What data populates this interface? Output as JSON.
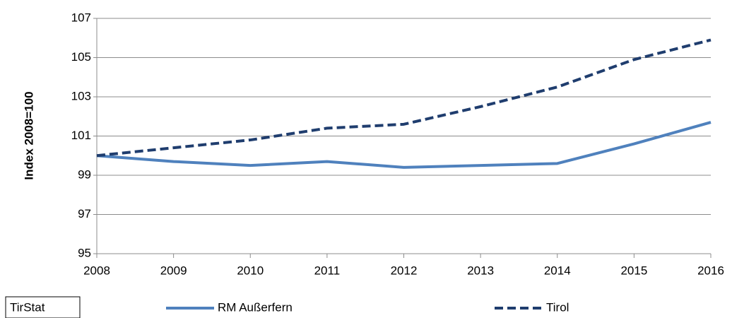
{
  "chart_data": {
    "type": "line",
    "y_label": "Index 2008=100",
    "source": "TirStat",
    "x": [
      2008,
      2009,
      2010,
      2011,
      2012,
      2013,
      2014,
      2015,
      2016
    ],
    "xlim": [
      2008,
      2016
    ],
    "xticks": [
      2008,
      2009,
      2010,
      2011,
      2012,
      2013,
      2014,
      2015,
      2016
    ],
    "ylim": [
      95,
      107
    ],
    "yticks": [
      95,
      97,
      99,
      101,
      103,
      105,
      107
    ],
    "grid": true,
    "legend": "bottom",
    "series": [
      {
        "name": "RM Außerfern",
        "color": "#4f81bd",
        "dashed": false,
        "values": [
          100,
          99.7,
          99.5,
          99.7,
          99.4,
          99.5,
          99.6,
          100.6,
          101.7
        ]
      },
      {
        "name": "Tirol",
        "color": "#1f3d6e",
        "dashed": true,
        "values": [
          100,
          100.4,
          100.8,
          101.4,
          101.6,
          102.5,
          103.5,
          104.9,
          105.9
        ]
      }
    ]
  }
}
